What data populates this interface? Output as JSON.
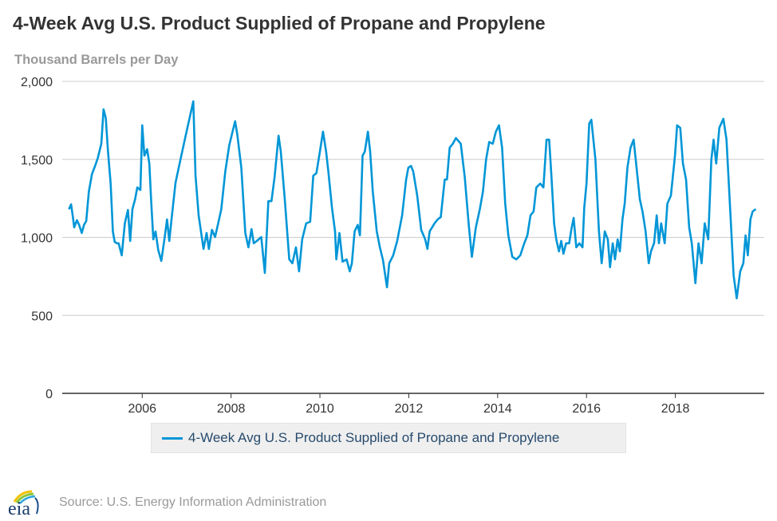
{
  "chart_data": {
    "type": "line",
    "title": "4-Week Avg U.S. Product Supplied of Propane and Propylene",
    "ylabel": "Thousand Barrels per Day",
    "xlabel": "",
    "ylim": [
      0,
      2000
    ],
    "xlim": [
      2004.2,
      2020.0
    ],
    "yticks": [
      0,
      500,
      1000,
      1500,
      2000
    ],
    "ytick_labels": [
      "0",
      "500",
      "1,000",
      "1,500",
      "2,000"
    ],
    "xticks": [
      2006,
      2008,
      2010,
      2012,
      2014,
      2016,
      2018
    ],
    "xtick_labels": [
      "2006",
      "2008",
      "2010",
      "2012",
      "2014",
      "2016",
      "2018"
    ],
    "grid": "horizontal",
    "legend": "bottom-center",
    "series": [
      {
        "name": "4-Week Avg U.S. Product Supplied of Propane and Propylene",
        "color": "#0096d7",
        "points": [
          [
            2004.35,
            1180
          ],
          [
            2004.4,
            1212
          ],
          [
            2004.44,
            1130
          ],
          [
            2004.47,
            1064
          ],
          [
            2004.53,
            1110
          ],
          [
            2004.58,
            1080
          ],
          [
            2004.64,
            1028
          ],
          [
            2004.69,
            1080
          ],
          [
            2004.74,
            1105
          ],
          [
            2004.8,
            1294
          ],
          [
            2004.87,
            1406
          ],
          [
            2004.94,
            1458
          ],
          [
            2005.0,
            1509
          ],
          [
            2005.08,
            1600
          ],
          [
            2005.13,
            1821
          ],
          [
            2005.18,
            1765
          ],
          [
            2005.23,
            1550
          ],
          [
            2005.29,
            1345
          ],
          [
            2005.34,
            1038
          ],
          [
            2005.38,
            972
          ],
          [
            2005.43,
            962
          ],
          [
            2005.47,
            962
          ],
          [
            2005.54,
            885
          ],
          [
            2005.61,
            1090
          ],
          [
            2005.68,
            1176
          ],
          [
            2005.73,
            977
          ],
          [
            2005.78,
            1181
          ],
          [
            2005.84,
            1243
          ],
          [
            2005.89,
            1320
          ],
          [
            2005.96,
            1304
          ],
          [
            2006.0,
            1718
          ],
          [
            2006.05,
            1524
          ],
          [
            2006.11,
            1565
          ],
          [
            2006.16,
            1473
          ],
          [
            2006.2,
            1243
          ],
          [
            2006.25,
            987
          ],
          [
            2006.3,
            1038
          ],
          [
            2006.36,
            920
          ],
          [
            2006.43,
            849
          ],
          [
            2006.5,
            987
          ],
          [
            2006.56,
            1115
          ],
          [
            2006.61,
            977
          ],
          [
            2006.66,
            1115
          ],
          [
            2006.75,
            1350
          ],
          [
            2006.86,
            1498
          ],
          [
            2006.97,
            1642
          ],
          [
            2007.15,
            1872
          ],
          [
            2007.2,
            1396
          ],
          [
            2007.27,
            1141
          ],
          [
            2007.38,
            926
          ],
          [
            2007.45,
            1028
          ],
          [
            2007.5,
            926
          ],
          [
            2007.57,
            1048
          ],
          [
            2007.64,
            1002
          ],
          [
            2007.71,
            1090
          ],
          [
            2007.78,
            1181
          ],
          [
            2007.87,
            1422
          ],
          [
            2007.96,
            1591
          ],
          [
            2008.09,
            1744
          ],
          [
            2008.14,
            1662
          ],
          [
            2008.23,
            1447
          ],
          [
            2008.32,
            1028
          ],
          [
            2008.39,
            936
          ],
          [
            2008.46,
            1053
          ],
          [
            2008.51,
            962
          ],
          [
            2008.58,
            977
          ],
          [
            2008.68,
            1002
          ],
          [
            2008.76,
            772
          ],
          [
            2008.84,
            1232
          ],
          [
            2008.91,
            1232
          ],
          [
            2008.98,
            1386
          ],
          [
            2009.07,
            1652
          ],
          [
            2009.12,
            1550
          ],
          [
            2009.21,
            1243
          ],
          [
            2009.31,
            859
          ],
          [
            2009.38,
            834
          ],
          [
            2009.46,
            936
          ],
          [
            2009.53,
            782
          ],
          [
            2009.6,
            987
          ],
          [
            2009.69,
            1090
          ],
          [
            2009.78,
            1100
          ],
          [
            2009.85,
            1396
          ],
          [
            2009.92,
            1411
          ],
          [
            2010.0,
            1550
          ],
          [
            2010.07,
            1678
          ],
          [
            2010.14,
            1550
          ],
          [
            2010.19,
            1422
          ],
          [
            2010.27,
            1192
          ],
          [
            2010.34,
            1038
          ],
          [
            2010.37,
            859
          ],
          [
            2010.44,
            1028
          ],
          [
            2010.51,
            844
          ],
          [
            2010.6,
            859
          ],
          [
            2010.67,
            782
          ],
          [
            2010.72,
            834
          ],
          [
            2010.78,
            1038
          ],
          [
            2010.85,
            1080
          ],
          [
            2010.9,
            1013
          ],
          [
            2010.96,
            1524
          ],
          [
            2011.01,
            1550
          ],
          [
            2011.08,
            1678
          ],
          [
            2011.13,
            1550
          ],
          [
            2011.19,
            1294
          ],
          [
            2011.28,
            1038
          ],
          [
            2011.35,
            936
          ],
          [
            2011.42,
            854
          ],
          [
            2011.51,
            680
          ],
          [
            2011.56,
            834
          ],
          [
            2011.65,
            885
          ],
          [
            2011.74,
            977
          ],
          [
            2011.85,
            1141
          ],
          [
            2011.94,
            1371
          ],
          [
            2011.99,
            1447
          ],
          [
            2012.05,
            1458
          ],
          [
            2012.1,
            1422
          ],
          [
            2012.19,
            1268
          ],
          [
            2012.28,
            1048
          ],
          [
            2012.37,
            987
          ],
          [
            2012.42,
            926
          ],
          [
            2012.47,
            1038
          ],
          [
            2012.58,
            1090
          ],
          [
            2012.65,
            1115
          ],
          [
            2012.72,
            1130
          ],
          [
            2012.81,
            1371
          ],
          [
            2012.86,
            1371
          ],
          [
            2012.92,
            1575
          ],
          [
            2012.99,
            1600
          ],
          [
            2013.06,
            1637
          ],
          [
            2013.17,
            1600
          ],
          [
            2013.26,
            1386
          ],
          [
            2013.35,
            1080
          ],
          [
            2013.42,
            875
          ],
          [
            2013.51,
            1064
          ],
          [
            2013.6,
            1181
          ],
          [
            2013.67,
            1294
          ],
          [
            2013.74,
            1498
          ],
          [
            2013.81,
            1611
          ],
          [
            2013.89,
            1600
          ],
          [
            2013.96,
            1678
          ],
          [
            2014.03,
            1718
          ],
          [
            2014.1,
            1575
          ],
          [
            2014.17,
            1217
          ],
          [
            2014.24,
            1013
          ],
          [
            2014.33,
            875
          ],
          [
            2014.42,
            859
          ],
          [
            2014.51,
            885
          ],
          [
            2014.6,
            962
          ],
          [
            2014.67,
            1013
          ],
          [
            2014.74,
            1141
          ],
          [
            2014.81,
            1166
          ],
          [
            2014.87,
            1320
          ],
          [
            2014.96,
            1345
          ],
          [
            2015.03,
            1320
          ],
          [
            2015.1,
            1626
          ],
          [
            2015.16,
            1626
          ],
          [
            2015.21,
            1396
          ],
          [
            2015.27,
            1090
          ],
          [
            2015.32,
            987
          ],
          [
            2015.38,
            910
          ],
          [
            2015.43,
            977
          ],
          [
            2015.48,
            895
          ],
          [
            2015.54,
            962
          ],
          [
            2015.61,
            962
          ],
          [
            2015.66,
            1053
          ],
          [
            2015.71,
            1125
          ],
          [
            2015.77,
            936
          ],
          [
            2015.84,
            962
          ],
          [
            2015.91,
            936
          ],
          [
            2015.95,
            1192
          ],
          [
            2016.0,
            1345
          ],
          [
            2016.06,
            1729
          ],
          [
            2016.11,
            1754
          ],
          [
            2016.2,
            1498
          ],
          [
            2016.28,
            1038
          ],
          [
            2016.34,
            834
          ],
          [
            2016.41,
            1038
          ],
          [
            2016.48,
            987
          ],
          [
            2016.53,
            808
          ],
          [
            2016.59,
            962
          ],
          [
            2016.64,
            859
          ],
          [
            2016.7,
            987
          ],
          [
            2016.75,
            910
          ],
          [
            2016.81,
            1115
          ],
          [
            2016.86,
            1217
          ],
          [
            2016.92,
            1447
          ],
          [
            2016.99,
            1575
          ],
          [
            2017.06,
            1626
          ],
          [
            2017.2,
            1243
          ],
          [
            2017.26,
            1166
          ],
          [
            2017.33,
            1038
          ],
          [
            2017.4,
            834
          ],
          [
            2017.45,
            910
          ],
          [
            2017.52,
            962
          ],
          [
            2017.58,
            1141
          ],
          [
            2017.63,
            962
          ],
          [
            2017.68,
            1090
          ],
          [
            2017.76,
            962
          ],
          [
            2017.82,
            1217
          ],
          [
            2017.9,
            1268
          ],
          [
            2017.99,
            1524
          ],
          [
            2018.04,
            1718
          ],
          [
            2018.11,
            1703
          ],
          [
            2018.17,
            1473
          ],
          [
            2018.24,
            1371
          ],
          [
            2018.31,
            1064
          ],
          [
            2018.37,
            962
          ],
          [
            2018.45,
            706
          ],
          [
            2018.52,
            962
          ],
          [
            2018.59,
            834
          ],
          [
            2018.66,
            1090
          ],
          [
            2018.74,
            987
          ],
          [
            2018.81,
            1498
          ],
          [
            2018.86,
            1626
          ],
          [
            2018.92,
            1473
          ],
          [
            2018.99,
            1703
          ],
          [
            2019.08,
            1760
          ],
          [
            2019.15,
            1626
          ],
          [
            2019.24,
            1141
          ],
          [
            2019.31,
            757
          ],
          [
            2019.38,
            609
          ],
          [
            2019.46,
            782
          ],
          [
            2019.53,
            834
          ],
          [
            2019.58,
            1013
          ],
          [
            2019.63,
            885
          ],
          [
            2019.69,
            1115
          ],
          [
            2019.74,
            1166
          ],
          [
            2019.81,
            1181
          ]
        ]
      }
    ]
  },
  "legend": {
    "label": "4-Week Avg U.S. Product Supplied of Propane and Propylene",
    "color": "#0096d7"
  },
  "footer": {
    "logo_text": "eia",
    "source": "Source: U.S. Energy Information Administration"
  }
}
